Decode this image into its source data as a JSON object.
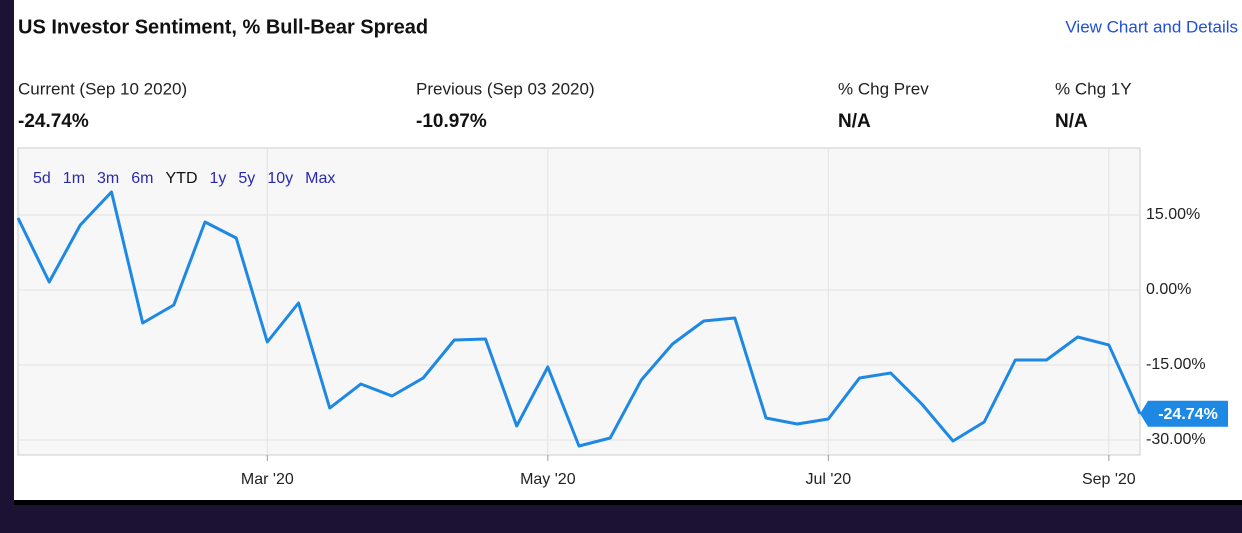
{
  "header": {
    "title": "US Investor Sentiment, % Bull-Bear Spread",
    "link": "View Chart and Details"
  },
  "stats": [
    {
      "label": "Current (Sep 10 2020)",
      "value": "-24.74%"
    },
    {
      "label": "Previous (Sep 03 2020)",
      "value": "-10.97%"
    },
    {
      "label": "% Chg Prev",
      "value": "N/A"
    },
    {
      "label": "% Chg 1Y",
      "value": "N/A"
    }
  ],
  "chart_data": {
    "type": "line",
    "range_buttons": [
      "5d",
      "1m",
      "3m",
      "6m",
      "YTD",
      "1y",
      "5y",
      "10y",
      "Max"
    ],
    "selected_range": "YTD",
    "categories": [
      null,
      null,
      null,
      null,
      null,
      null,
      null,
      null,
      "Mar '20",
      null,
      null,
      null,
      null,
      null,
      null,
      null,
      null,
      "May '20",
      null,
      null,
      null,
      null,
      null,
      null,
      null,
      null,
      "Jul '20",
      null,
      null,
      null,
      null,
      null,
      null,
      null,
      null,
      "Sep '20",
      null
    ],
    "values": [
      14.4,
      1.6,
      13,
      19.6,
      -6.6,
      -3,
      13.6,
      10.4,
      -10.4,
      -2.6,
      -23.6,
      -18.8,
      -21.2,
      -17.6,
      -10,
      -9.8,
      -27.2,
      -15.4,
      -31.2,
      -29.6,
      -18,
      -10.8,
      -6.2,
      -5.6,
      -25.6,
      -26.8,
      -25.8,
      -17.6,
      -16.6,
      -22.8,
      -30.2,
      -26.4,
      -14,
      -14,
      -9.4,
      -10.97,
      -24.74
    ],
    "color": "#1e88e5",
    "ylim": [
      -33,
      28.4
    ],
    "yticks": [
      {
        "value": 15,
        "label": "15.00%"
      },
      {
        "value": 0,
        "label": "0.00%"
      },
      {
        "value": -15,
        "label": "-15.00%"
      },
      {
        "value": -30,
        "label": "-30.00%"
      }
    ],
    "grid": true
  }
}
